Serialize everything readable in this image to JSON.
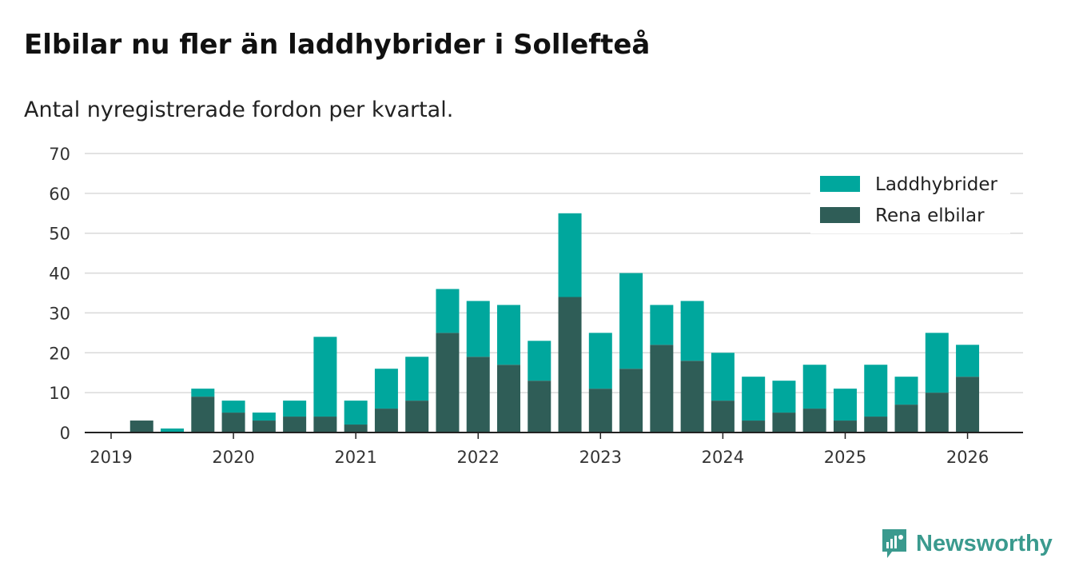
{
  "title": "Elbilar nu fler än laddhybrider i Sollefteå",
  "subtitle": "Antal nyregistrerade fordon per kvartal.",
  "brand": {
    "name": "Newsworthy",
    "icon": "newsworthy-logo-icon"
  },
  "colors": {
    "laddhybrider": "#00a79d",
    "elbilar": "#2f5d57",
    "grid": "#d9d9d9",
    "axis": "#222222"
  },
  "chart_data": {
    "type": "bar",
    "stacked": true,
    "x_ticks": [
      {
        "label": "2019",
        "pos": 0
      },
      {
        "label": "2020",
        "pos": 4
      },
      {
        "label": "2021",
        "pos": 8
      },
      {
        "label": "2022",
        "pos": 12
      },
      {
        "label": "2023",
        "pos": 16
      },
      {
        "label": "2024",
        "pos": 20
      },
      {
        "label": "2025",
        "pos": 24
      },
      {
        "label": "2026",
        "pos": 28
      }
    ],
    "y_ticks": [
      0,
      10,
      20,
      30,
      40,
      50,
      60,
      70
    ],
    "ylim": [
      0,
      70
    ],
    "grid": true,
    "legend_position": "top-right",
    "series": [
      {
        "name": "Laddhybrider",
        "values": [
          0,
          0,
          1,
          2,
          3,
          2,
          4,
          20,
          6,
          10,
          11,
          11,
          14,
          15,
          10,
          21,
          14,
          24,
          10,
          15,
          12,
          11,
          8,
          11,
          8,
          13,
          7,
          15,
          8
        ]
      },
      {
        "name": "Rena elbilar",
        "values": [
          0,
          3,
          0,
          9,
          5,
          3,
          4,
          4,
          2,
          6,
          8,
          25,
          19,
          17,
          13,
          34,
          11,
          16,
          22,
          18,
          8,
          3,
          5,
          6,
          3,
          4,
          7,
          10,
          14
        ]
      }
    ]
  }
}
